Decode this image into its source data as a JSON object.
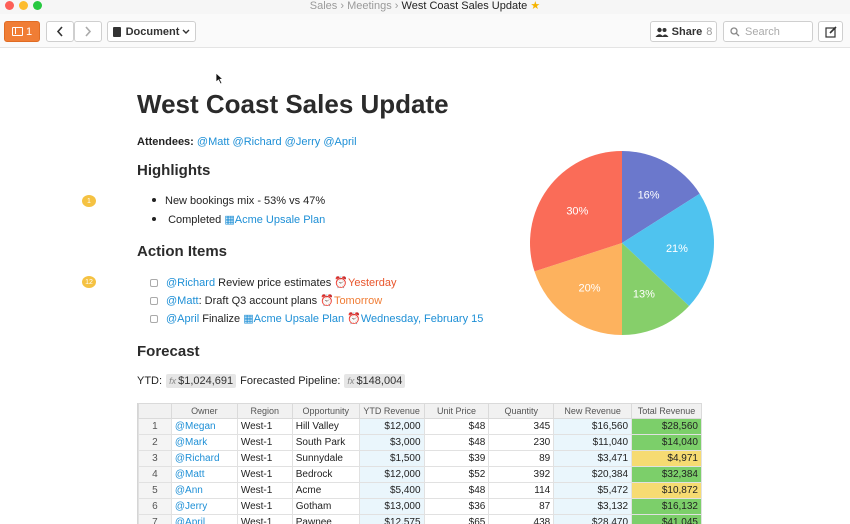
{
  "window": {
    "breadcrumb": [
      "Sales",
      "Meetings"
    ],
    "title": "West Coast Sales Update",
    "separator": "›"
  },
  "toolbar": {
    "comments_count": "1",
    "document_label": "Document",
    "share_label": "Share",
    "share_count": "8",
    "search_placeholder": "Search"
  },
  "doc": {
    "title": "West Coast Sales Update",
    "attendees_label": "Attendees:",
    "attendees": [
      "@Matt",
      "@Richard",
      "@Jerry",
      "@April"
    ],
    "highlights_heading": "Highlights",
    "highlights": {
      "item1": "New bookings mix - 53% vs 47%",
      "item2_prefix": "Completed",
      "item2_link": "Acme Upsale Plan"
    },
    "comment_badge_1": "1",
    "comment_badge_2": "12",
    "action_heading": "Action Items",
    "tasks": [
      {
        "mention": "@Richard",
        "text": " Review price estimates ",
        "date": "Yesterday"
      },
      {
        "mention": "@Matt",
        "text": ": Draft Q3 account plans ",
        "date": "Tomorrow"
      },
      {
        "mention": "@April",
        "text": " Finalize ",
        "link": "Acme Upsale Plan",
        "date": "Wednesday, February 15"
      }
    ],
    "forecast_heading": "Forecast",
    "ytd_label": "YTD:",
    "ytd_value": "$1,024,691",
    "pipeline_label": "Forecasted Pipeline:",
    "pipeline_value": "$148,004",
    "fx": "fx"
  },
  "table": {
    "headers": [
      "",
      "Owner",
      "Region",
      "Opportunity",
      "YTD Revenue",
      "Unit Price",
      "Quantity",
      "New Revenue",
      "Total Revenue"
    ],
    "rows": [
      [
        "1",
        "@Megan",
        "West-1",
        "Hill Valley",
        "$12,000",
        "$48",
        "345",
        "$16,560",
        "$28,560",
        "green"
      ],
      [
        "2",
        "@Mark",
        "West-1",
        "South Park",
        "$3,000",
        "$48",
        "230",
        "$11,040",
        "$14,040",
        "green"
      ],
      [
        "3",
        "@Richard",
        "West-1",
        "Sunnydale",
        "$1,500",
        "$39",
        "89",
        "$3,471",
        "$4,971",
        "yellow"
      ],
      [
        "4",
        "@Matt",
        "West-1",
        "Bedrock",
        "$12,000",
        "$52",
        "392",
        "$20,384",
        "$32,384",
        "green"
      ],
      [
        "5",
        "@Ann",
        "West-1",
        "Acme",
        "$5,400",
        "$48",
        "114",
        "$5,472",
        "$10,872",
        "yellow"
      ],
      [
        "6",
        "@Jerry",
        "West-1",
        "Gotham",
        "$13,000",
        "$36",
        "87",
        "$3,132",
        "$16,132",
        "green"
      ],
      [
        "7",
        "@April",
        "West-1",
        "Pawnee",
        "$12,575",
        "$65",
        "438",
        "$28,470",
        "$41,045",
        "green"
      ]
    ]
  },
  "chart_data": {
    "type": "pie",
    "slices": [
      {
        "label": "16%",
        "value": 16,
        "color": "#6b78cc"
      },
      {
        "label": "21%",
        "value": 21,
        "color": "#4fc3ef"
      },
      {
        "label": "13%",
        "value": 13,
        "color": "#86cf6a"
      },
      {
        "label": "20%",
        "value": 20,
        "color": "#fdb25e"
      },
      {
        "label": "30%",
        "value": 30,
        "color": "#fa6c58"
      }
    ]
  },
  "colors": {
    "accent": "#f07d35",
    "mention": "#1d8fd6"
  }
}
